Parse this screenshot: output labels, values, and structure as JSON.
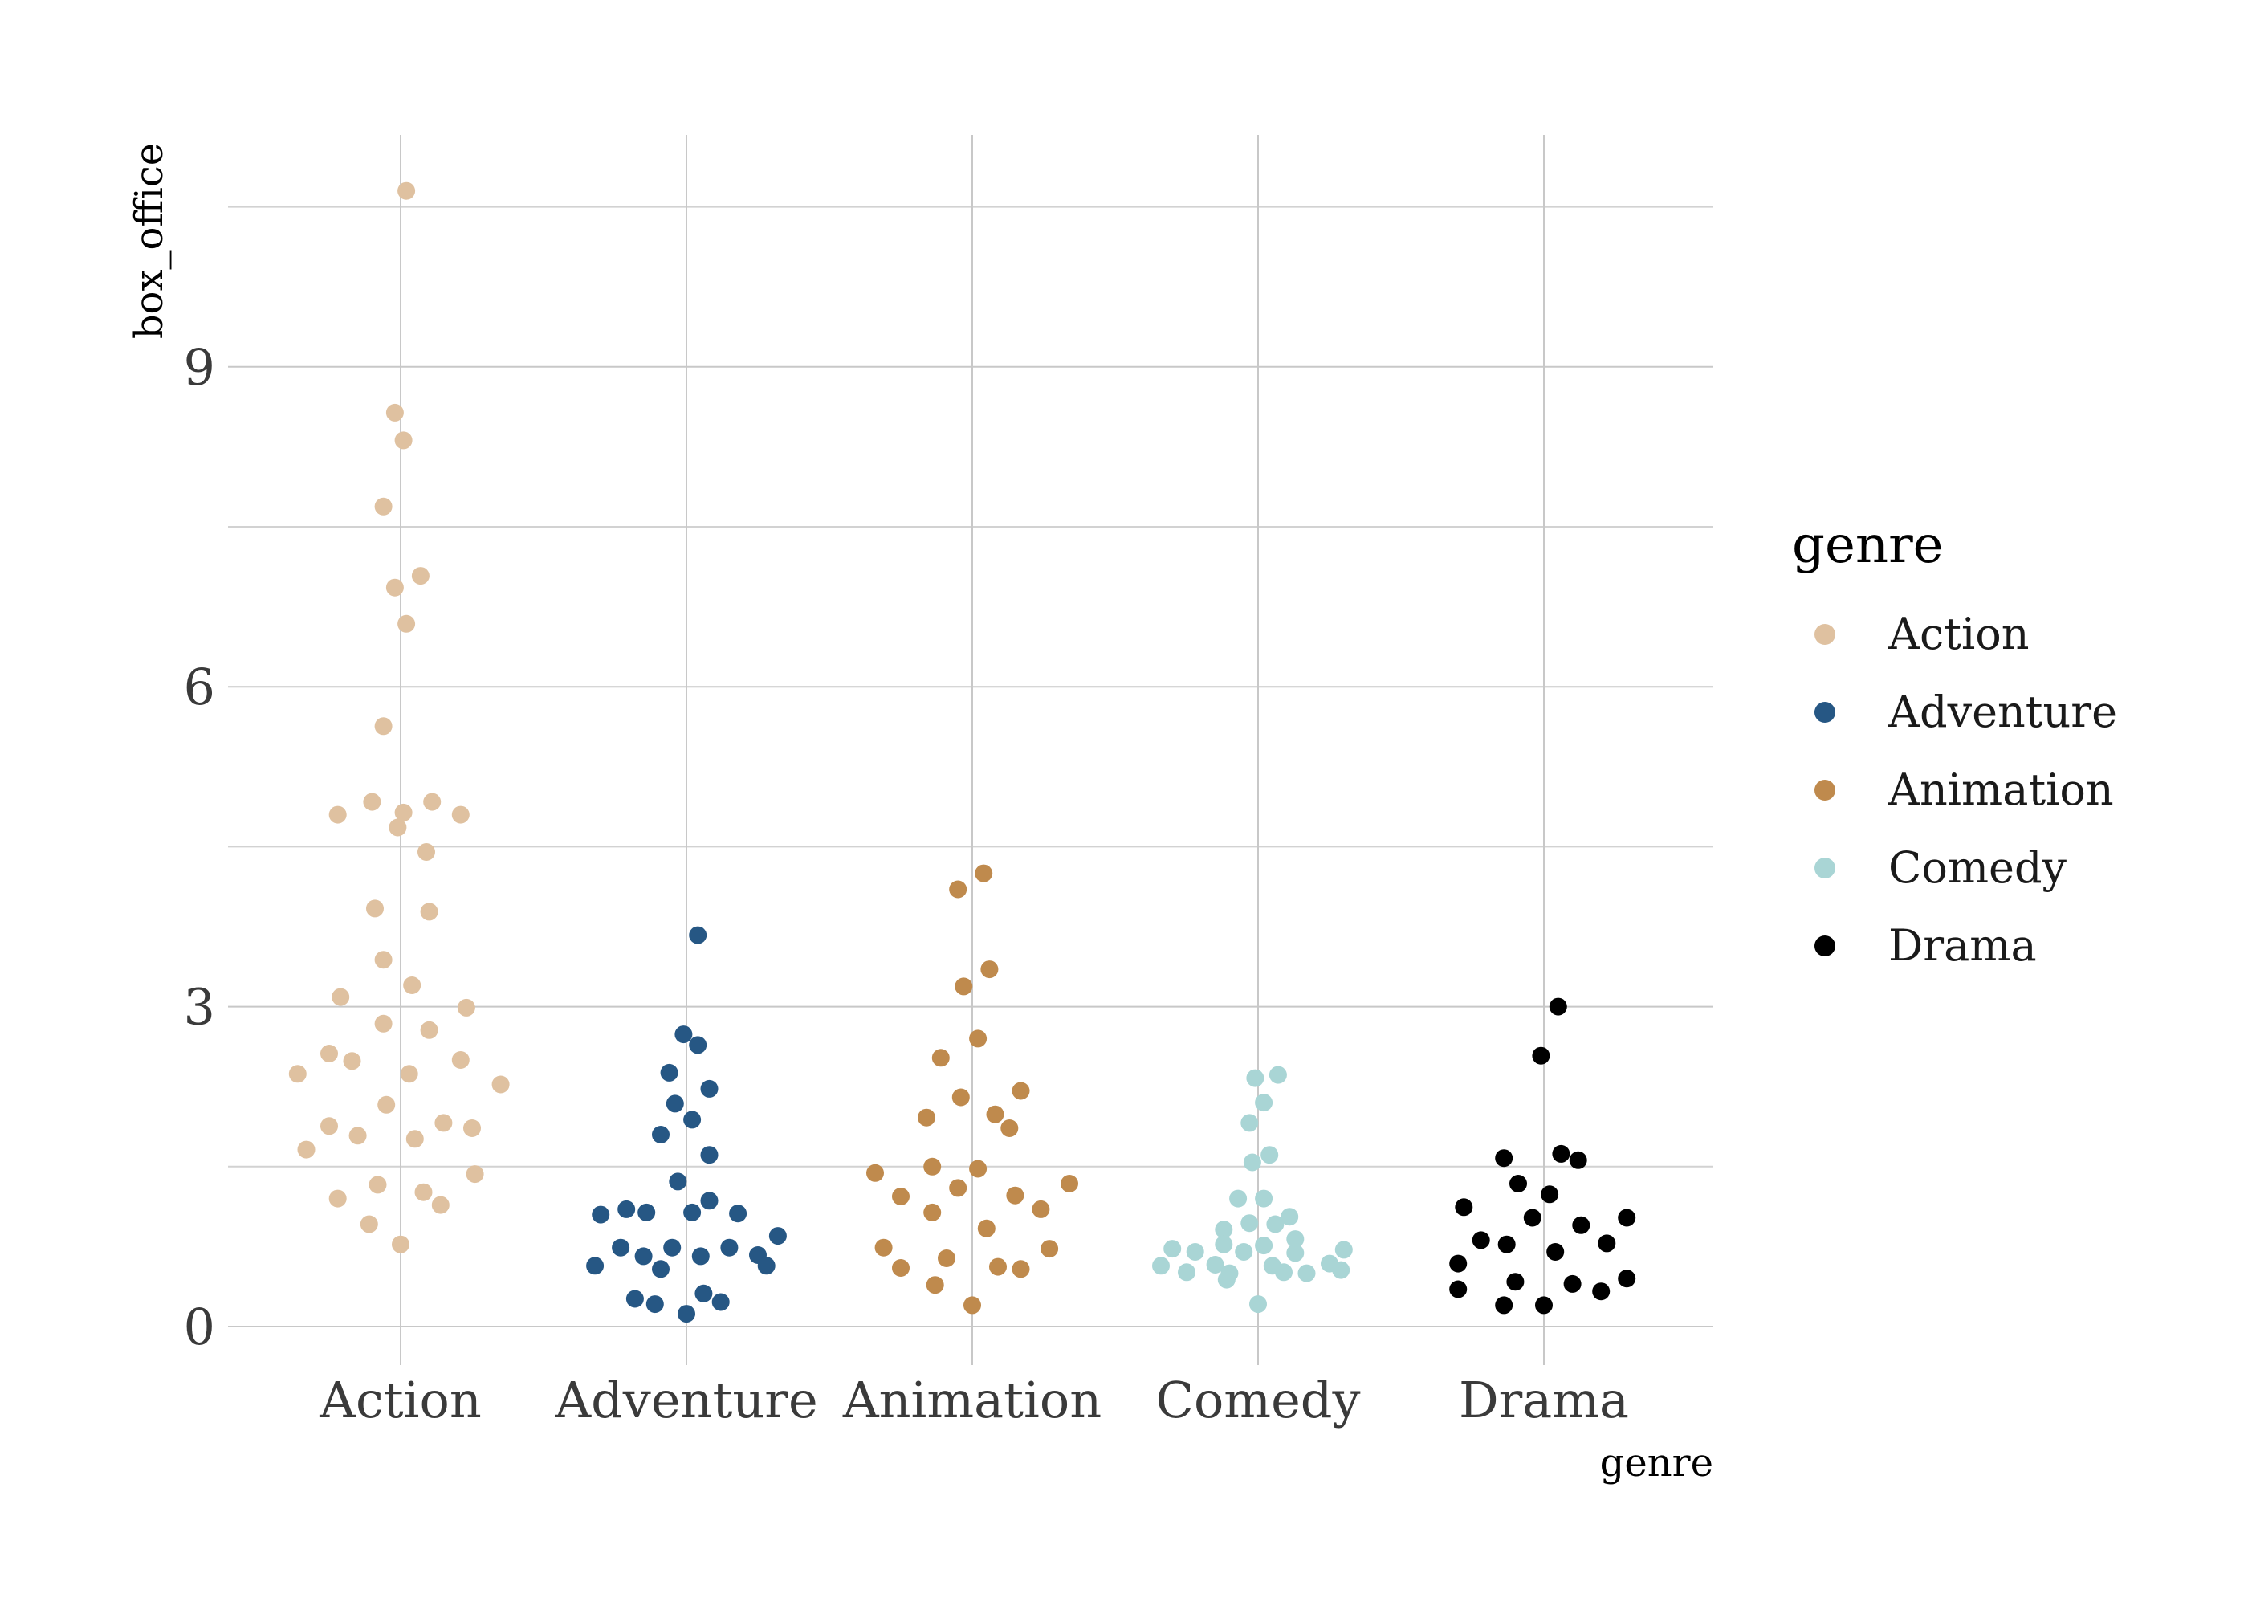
{
  "chart_data": {
    "type": "scatter",
    "subtype": "beeswarm",
    "title": "",
    "xlabel": "genre",
    "ylabel": "box_office",
    "categories": [
      "Action",
      "Adventure",
      "Animation",
      "Comedy",
      "Drama"
    ],
    "y_ticks": [
      0,
      3,
      6,
      9
    ],
    "ylim": [
      -0.3,
      11.3
    ],
    "grid": true,
    "legend": {
      "title": "genre",
      "placement": "right",
      "entries": [
        "Action",
        "Adventure",
        "Animation",
        "Comedy",
        "Drama"
      ]
    },
    "colors": {
      "Action": "#dfc1a0",
      "Adventure": "#265784",
      "Animation": "#bf8a4d",
      "Comedy": "#a9d5d5",
      "Drama": "#000000"
    },
    "series": [
      {
        "name": "Action",
        "points": [
          {
            "dx": 0.02,
            "y": 10.65
          },
          {
            "dx": -0.02,
            "y": 8.57
          },
          {
            "dx": 0.01,
            "y": 8.31
          },
          {
            "dx": -0.06,
            "y": 7.69
          },
          {
            "dx": 0.07,
            "y": 7.04
          },
          {
            "dx": -0.02,
            "y": 6.93
          },
          {
            "dx": 0.02,
            "y": 6.59
          },
          {
            "dx": -0.06,
            "y": 5.63
          },
          {
            "dx": -0.1,
            "y": 4.92
          },
          {
            "dx": 0.11,
            "y": 4.92
          },
          {
            "dx": -0.22,
            "y": 4.8
          },
          {
            "dx": 0.01,
            "y": 4.82
          },
          {
            "dx": 0.21,
            "y": 4.8
          },
          {
            "dx": -0.01,
            "y": 4.68
          },
          {
            "dx": 0.09,
            "y": 4.45
          },
          {
            "dx": -0.09,
            "y": 3.92
          },
          {
            "dx": 0.1,
            "y": 3.89
          },
          {
            "dx": -0.06,
            "y": 3.44
          },
          {
            "dx": 0.04,
            "y": 3.2
          },
          {
            "dx": -0.21,
            "y": 3.09
          },
          {
            "dx": 0.23,
            "y": 2.99
          },
          {
            "dx": -0.06,
            "y": 2.84
          },
          {
            "dx": 0.1,
            "y": 2.78
          },
          {
            "dx": -0.25,
            "y": 2.56
          },
          {
            "dx": -0.17,
            "y": 2.49
          },
          {
            "dx": 0.21,
            "y": 2.5
          },
          {
            "dx": -0.36,
            "y": 2.37
          },
          {
            "dx": 0.03,
            "y": 2.37
          },
          {
            "dx": 0.35,
            "y": 2.27
          },
          {
            "dx": -0.05,
            "y": 2.08
          },
          {
            "dx": -0.25,
            "y": 1.88
          },
          {
            "dx": 0.15,
            "y": 1.91
          },
          {
            "dx": 0.25,
            "y": 1.86
          },
          {
            "dx": -0.15,
            "y": 1.79
          },
          {
            "dx": 0.05,
            "y": 1.76
          },
          {
            "dx": -0.33,
            "y": 1.66
          },
          {
            "dx": 0.26,
            "y": 1.43
          },
          {
            "dx": -0.08,
            "y": 1.33
          },
          {
            "dx": 0.08,
            "y": 1.26
          },
          {
            "dx": -0.22,
            "y": 1.2
          },
          {
            "dx": 0.14,
            "y": 1.14
          },
          {
            "dx": -0.11,
            "y": 0.96
          },
          {
            "dx": 0.0,
            "y": 0.77
          }
        ]
      },
      {
        "name": "Adventure",
        "points": [
          {
            "dx": 0.04,
            "y": 3.67
          },
          {
            "dx": -0.01,
            "y": 2.74
          },
          {
            "dx": 0.04,
            "y": 2.64
          },
          {
            "dx": -0.06,
            "y": 2.38
          },
          {
            "dx": 0.08,
            "y": 2.23
          },
          {
            "dx": -0.04,
            "y": 2.09
          },
          {
            "dx": 0.02,
            "y": 1.94
          },
          {
            "dx": -0.09,
            "y": 1.8
          },
          {
            "dx": 0.08,
            "y": 1.61
          },
          {
            "dx": -0.03,
            "y": 1.36
          },
          {
            "dx": 0.08,
            "y": 1.18
          },
          {
            "dx": -0.21,
            "y": 1.1
          },
          {
            "dx": -0.3,
            "y": 1.05
          },
          {
            "dx": -0.14,
            "y": 1.07
          },
          {
            "dx": 0.02,
            "y": 1.07
          },
          {
            "dx": 0.18,
            "y": 1.06
          },
          {
            "dx": 0.32,
            "y": 0.85
          },
          {
            "dx": -0.23,
            "y": 0.74
          },
          {
            "dx": -0.05,
            "y": 0.74
          },
          {
            "dx": 0.15,
            "y": 0.74
          },
          {
            "dx": -0.15,
            "y": 0.66
          },
          {
            "dx": 0.05,
            "y": 0.66
          },
          {
            "dx": 0.25,
            "y": 0.67
          },
          {
            "dx": -0.32,
            "y": 0.57
          },
          {
            "dx": -0.09,
            "y": 0.54
          },
          {
            "dx": 0.28,
            "y": 0.57
          },
          {
            "dx": 0.06,
            "y": 0.31
          },
          {
            "dx": -0.18,
            "y": 0.26
          },
          {
            "dx": -0.11,
            "y": 0.21
          },
          {
            "dx": 0.12,
            "y": 0.23
          },
          {
            "dx": 0.0,
            "y": 0.12
          }
        ]
      },
      {
        "name": "Animation",
        "points": [
          {
            "dx": 0.04,
            "y": 4.25
          },
          {
            "dx": -0.05,
            "y": 4.1
          },
          {
            "dx": 0.06,
            "y": 3.35
          },
          {
            "dx": -0.03,
            "y": 3.19
          },
          {
            "dx": 0.02,
            "y": 2.7
          },
          {
            "dx": -0.11,
            "y": 2.52
          },
          {
            "dx": 0.17,
            "y": 2.21
          },
          {
            "dx": -0.04,
            "y": 2.15
          },
          {
            "dx": 0.08,
            "y": 1.99
          },
          {
            "dx": -0.16,
            "y": 1.96
          },
          {
            "dx": 0.13,
            "y": 1.86
          },
          {
            "dx": -0.14,
            "y": 1.5
          },
          {
            "dx": 0.02,
            "y": 1.48
          },
          {
            "dx": -0.34,
            "y": 1.44
          },
          {
            "dx": 0.34,
            "y": 1.34
          },
          {
            "dx": -0.05,
            "y": 1.3
          },
          {
            "dx": 0.15,
            "y": 1.23
          },
          {
            "dx": -0.25,
            "y": 1.22
          },
          {
            "dx": -0.14,
            "y": 1.07
          },
          {
            "dx": 0.24,
            "y": 1.1
          },
          {
            "dx": 0.05,
            "y": 0.92
          },
          {
            "dx": -0.31,
            "y": 0.74
          },
          {
            "dx": 0.27,
            "y": 0.73
          },
          {
            "dx": -0.09,
            "y": 0.64
          },
          {
            "dx": -0.25,
            "y": 0.55
          },
          {
            "dx": 0.09,
            "y": 0.56
          },
          {
            "dx": 0.17,
            "y": 0.54
          },
          {
            "dx": -0.13,
            "y": 0.39
          },
          {
            "dx": 0.0,
            "y": 0.2
          }
        ]
      },
      {
        "name": "Comedy",
        "points": [
          {
            "dx": -0.01,
            "y": 2.33
          },
          {
            "dx": 0.07,
            "y": 2.36
          },
          {
            "dx": 0.02,
            "y": 2.1
          },
          {
            "dx": -0.03,
            "y": 1.91
          },
          {
            "dx": 0.04,
            "y": 1.61
          },
          {
            "dx": -0.02,
            "y": 1.54
          },
          {
            "dx": -0.07,
            "y": 1.2
          },
          {
            "dx": 0.02,
            "y": 1.2
          },
          {
            "dx": 0.11,
            "y": 1.03
          },
          {
            "dx": -0.03,
            "y": 0.97
          },
          {
            "dx": 0.06,
            "y": 0.96
          },
          {
            "dx": -0.12,
            "y": 0.91
          },
          {
            "dx": 0.13,
            "y": 0.82
          },
          {
            "dx": -0.12,
            "y": 0.77
          },
          {
            "dx": 0.02,
            "y": 0.76
          },
          {
            "dx": -0.3,
            "y": 0.73
          },
          {
            "dx": 0.3,
            "y": 0.72
          },
          {
            "dx": -0.22,
            "y": 0.7
          },
          {
            "dx": -0.05,
            "y": 0.7
          },
          {
            "dx": 0.13,
            "y": 0.69
          },
          {
            "dx": -0.34,
            "y": 0.57
          },
          {
            "dx": -0.15,
            "y": 0.58
          },
          {
            "dx": 0.05,
            "y": 0.57
          },
          {
            "dx": 0.25,
            "y": 0.59
          },
          {
            "dx": -0.25,
            "y": 0.51
          },
          {
            "dx": -0.1,
            "y": 0.5
          },
          {
            "dx": 0.09,
            "y": 0.51
          },
          {
            "dx": 0.17,
            "y": 0.5
          },
          {
            "dx": 0.29,
            "y": 0.53
          },
          {
            "dx": -0.11,
            "y": 0.44
          },
          {
            "dx": 0.0,
            "y": 0.21
          }
        ]
      },
      {
        "name": "Drama",
        "points": [
          {
            "dx": 0.05,
            "y": 3.0
          },
          {
            "dx": -0.01,
            "y": 2.54
          },
          {
            "dx": -0.14,
            "y": 1.58
          },
          {
            "dx": 0.06,
            "y": 1.62
          },
          {
            "dx": 0.12,
            "y": 1.56
          },
          {
            "dx": -0.09,
            "y": 1.34
          },
          {
            "dx": 0.02,
            "y": 1.24
          },
          {
            "dx": -0.28,
            "y": 1.12
          },
          {
            "dx": -0.04,
            "y": 1.02
          },
          {
            "dx": 0.29,
            "y": 1.02
          },
          {
            "dx": 0.13,
            "y": 0.95
          },
          {
            "dx": -0.22,
            "y": 0.81
          },
          {
            "dx": -0.13,
            "y": 0.77
          },
          {
            "dx": 0.22,
            "y": 0.78
          },
          {
            "dx": 0.04,
            "y": 0.7
          },
          {
            "dx": -0.3,
            "y": 0.59
          },
          {
            "dx": -0.1,
            "y": 0.42
          },
          {
            "dx": 0.29,
            "y": 0.45
          },
          {
            "dx": 0.1,
            "y": 0.4
          },
          {
            "dx": -0.3,
            "y": 0.35
          },
          {
            "dx": 0.2,
            "y": 0.33
          },
          {
            "dx": -0.14,
            "y": 0.2
          },
          {
            "dx": 0.0,
            "y": 0.2
          }
        ]
      }
    ]
  }
}
